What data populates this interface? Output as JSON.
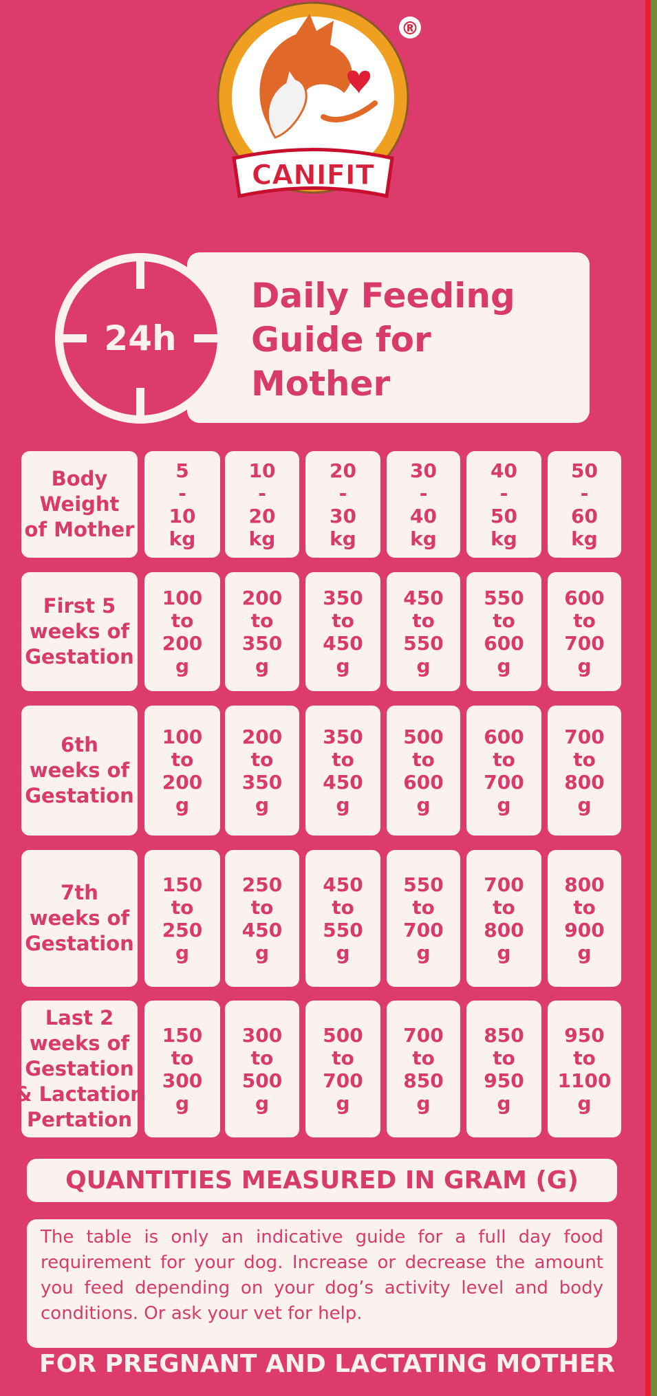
{
  "brand": "CANIFIT",
  "registered": "®",
  "clock_label": "24h",
  "title_lines": [
    "Daily Feeding",
    "Guide for",
    "Mother"
  ],
  "table": {
    "rows": [
      [
        [
          "Body",
          "Weight",
          "of Mother"
        ],
        [
          "5",
          "-",
          "10",
          "kg"
        ],
        [
          "10",
          "-",
          "20",
          "kg"
        ],
        [
          "20",
          "-",
          "30",
          "kg"
        ],
        [
          "30",
          "-",
          "40",
          "kg"
        ],
        [
          "40",
          "-",
          "50",
          "kg"
        ],
        [
          "50",
          "-",
          "60",
          "kg"
        ]
      ],
      [
        [
          "First 5",
          "weeks of",
          "Gestation"
        ],
        [
          "100",
          "to",
          "200",
          "g"
        ],
        [
          "200",
          "to",
          "350",
          "g"
        ],
        [
          "350",
          "to",
          "450",
          "g"
        ],
        [
          "450",
          "to",
          "550",
          "g"
        ],
        [
          "550",
          "to",
          "600",
          "g"
        ],
        [
          "600",
          "to",
          "700",
          "g"
        ]
      ],
      [
        [
          "6th",
          "weeks of",
          "Gestation"
        ],
        [
          "100",
          "to",
          "200",
          "g"
        ],
        [
          "200",
          "to",
          "350",
          "g"
        ],
        [
          "350",
          "to",
          "450",
          "g"
        ],
        [
          "500",
          "to",
          "600",
          "g"
        ],
        [
          "600",
          "to",
          "700",
          "g"
        ],
        [
          "700",
          "to",
          "800",
          "g"
        ]
      ],
      [
        [
          "7th",
          "weeks of",
          "Gestation"
        ],
        [
          "150",
          "to",
          "250",
          "g"
        ],
        [
          "250",
          "to",
          "450",
          "g"
        ],
        [
          "450",
          "to",
          "550",
          "g"
        ],
        [
          "550",
          "to",
          "700",
          "g"
        ],
        [
          "700",
          "to",
          "800",
          "g"
        ],
        [
          "800",
          "to",
          "900",
          "g"
        ]
      ],
      [
        [
          "Last 2",
          "weeks of",
          "Gestation",
          "& Lactation",
          "Pertation"
        ],
        [
          "150",
          "to",
          "300",
          "g"
        ],
        [
          "300",
          "to",
          "500",
          "g"
        ],
        [
          "500",
          "to",
          "700",
          "g"
        ],
        [
          "700",
          "to",
          "850",
          "g"
        ],
        [
          "850",
          "to",
          "950",
          "g"
        ],
        [
          "950",
          "to",
          "1100",
          "g"
        ]
      ]
    ]
  },
  "units_note": "QUANTITIES MEASURED IN GRAM (G)",
  "note": "The table is only an indicative guide for a full day food requirement for your dog. Increase or decrease the amount you feed depending on your dog’s activity level and body conditions. Or ask your vet for help.",
  "footer": "FOR PREGNANT AND LACTATING MOTHER"
}
